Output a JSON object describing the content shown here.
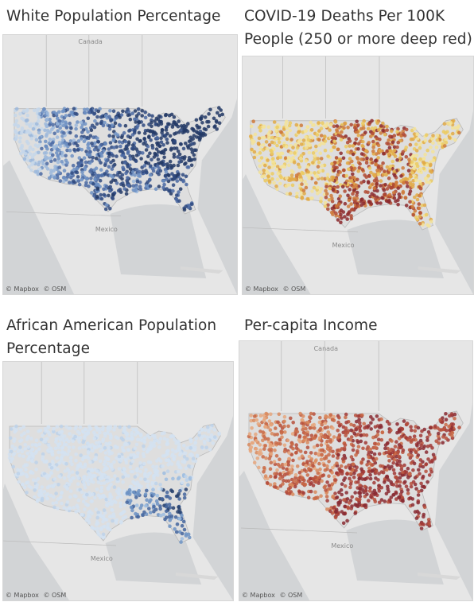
{
  "attribution": {
    "mapbox": "© Mapbox",
    "osm": "© OSM"
  },
  "map_labels": {
    "canada": "Canada",
    "mexico": "Mexico"
  },
  "colors": {
    "ocean": "#d2d4d6",
    "land": "#e6e6e6",
    "border": "#b9b9b9"
  },
  "panels": [
    {
      "id": "white",
      "title_lines": [
        "White Population Percentage"
      ],
      "show_canada": true,
      "show_mexico": true,
      "palette": [
        "#c6d7ea",
        "#9cb8dc",
        "#6f92c4",
        "#4b6aa3",
        "#2f4a80",
        "#233a66"
      ],
      "bias": "white"
    },
    {
      "id": "covid",
      "title_lines": [
        "COVID-19 Deaths Per 100K",
        "People (250 or more deep red)"
      ],
      "show_canada": false,
      "show_mexico": true,
      "palette": [
        "#f3e39a",
        "#eccb62",
        "#e2aa48",
        "#cf7a3a",
        "#b04a32",
        "#8c2a2e"
      ],
      "bias": "covid"
    },
    {
      "id": "black",
      "title_lines": [
        "African American Population",
        "Percentage"
      ],
      "show_canada": false,
      "show_mexico": true,
      "palette": [
        "#d4e2f1",
        "#bdd2ea",
        "#9ebde0",
        "#6d93c4",
        "#44659d",
        "#263f6d"
      ],
      "bias": "black"
    },
    {
      "id": "income",
      "title_lines": [
        "Per-capita Income"
      ],
      "show_canada": true,
      "show_mexico": true,
      "palette": [
        "#e6a77e",
        "#d98a5e",
        "#c96a46",
        "#b7503c",
        "#a23a36",
        "#8a2b32"
      ],
      "bias": "income"
    }
  ]
}
